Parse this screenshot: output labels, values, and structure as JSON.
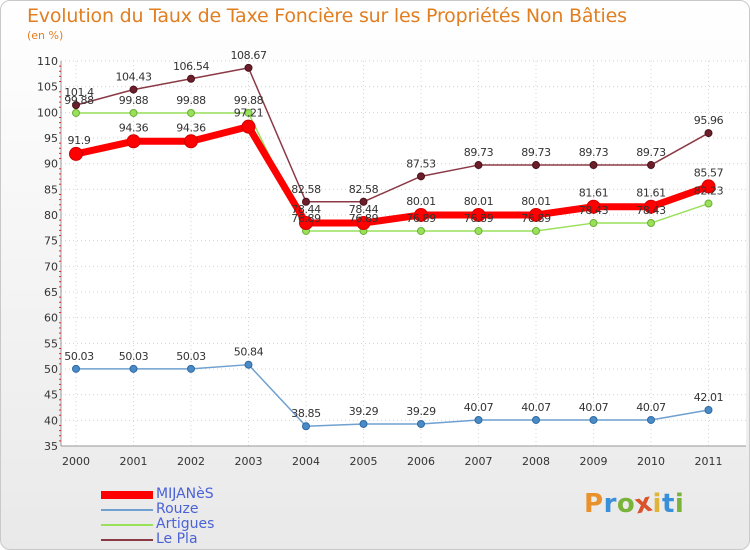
{
  "header": {
    "title": "Evolution du Taux de Taxe Foncière sur les Propriétés Non Bâties",
    "unit": "(en %)"
  },
  "logo": {
    "letters": [
      "P",
      "r",
      "o",
      "x",
      "i",
      "t",
      "i"
    ],
    "colors": [
      "#e8912d",
      "#3a8fd9",
      "#7ab33a",
      "#d9532b",
      "#e0b43a",
      "#3a8fd9",
      "#7ab33a"
    ]
  },
  "chart_data": {
    "type": "line",
    "title": "Evolution du Taux de Taxe Foncière sur les Propriétés Non Bâties",
    "ylabel": "(en %)",
    "xlabel": "",
    "ylim": [
      35,
      110
    ],
    "yticks": [
      35,
      40,
      45,
      50,
      55,
      60,
      65,
      70,
      75,
      80,
      85,
      90,
      95,
      100,
      105,
      110
    ],
    "x": [
      "2000",
      "2001",
      "2002",
      "2003",
      "2004",
      "2005",
      "2006",
      "2007",
      "2008",
      "2009",
      "2010",
      "2011"
    ],
    "grid": true,
    "legend_position": "bottom-left",
    "series": [
      {
        "name": "MIJANèS",
        "color": "#ff0000",
        "values": [
          91.9,
          94.36,
          94.36,
          97.21,
          78.44,
          78.44,
          80.01,
          80.01,
          80.01,
          81.61,
          81.61,
          85.57
        ],
        "labels": [
          "91.9",
          "94.36",
          "94.36",
          "97.21",
          "78.44",
          "78.44",
          "80.01",
          "80.01",
          "80.01",
          "81.61",
          "81.61",
          "85.57"
        ]
      },
      {
        "name": "Rouze",
        "color": "#6fa0cf",
        "values": [
          50.03,
          50.03,
          50.03,
          50.84,
          38.85,
          39.29,
          39.29,
          40.07,
          40.07,
          40.07,
          40.07,
          42.01
        ],
        "labels": [
          "50.03",
          "50.03",
          "50.03",
          "50.84",
          "38.85",
          "39.29",
          "39.29",
          "40.07",
          "40.07",
          "40.07",
          "40.07",
          "42.01"
        ]
      },
      {
        "name": "Artigues",
        "color": "#99e05b",
        "values": [
          99.88,
          99.88,
          99.88,
          99.88,
          76.89,
          76.89,
          76.89,
          76.89,
          76.89,
          78.43,
          78.43,
          82.23
        ],
        "labels": [
          "99.88",
          "99.88",
          "99.88",
          "99.88",
          "76.89",
          "76.89",
          "76.89",
          "76.89",
          "76.89",
          "78.43",
          "78.43",
          "82.23"
        ]
      },
      {
        "name": "Le Pla",
        "color": "#8b3a45",
        "values": [
          101.4,
          104.43,
          106.54,
          108.67,
          82.58,
          82.58,
          87.53,
          89.73,
          89.73,
          89.73,
          89.73,
          95.96
        ],
        "labels": [
          "101.4",
          "104.43",
          "106.54",
          "108.67",
          "82.58",
          "82.58",
          "87.53",
          "89.73",
          "89.73",
          "89.73",
          "89.73",
          "95.96"
        ]
      }
    ]
  }
}
